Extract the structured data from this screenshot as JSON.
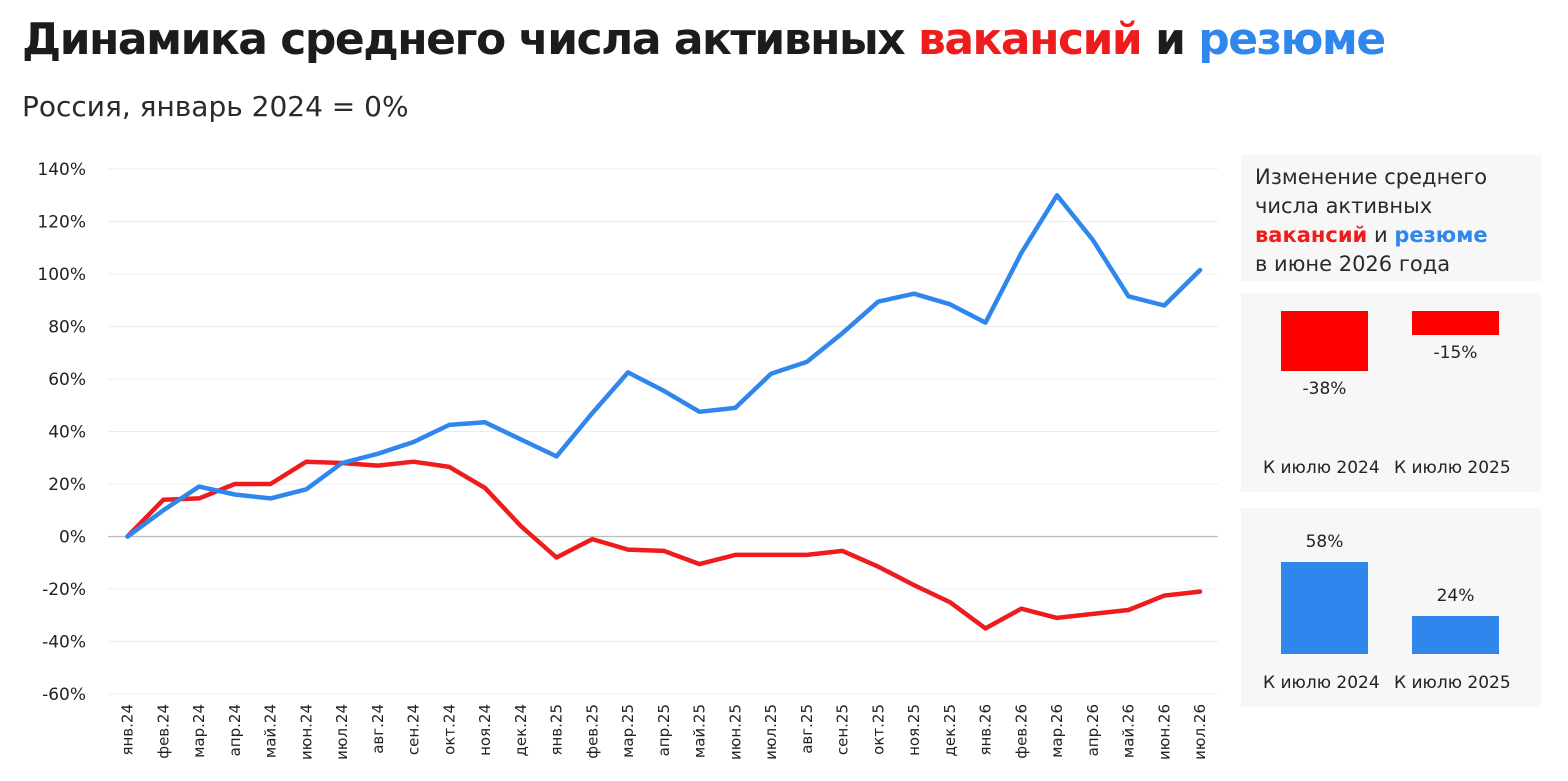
{
  "header": {
    "title_prefix": "Динамика среднего числа активных",
    "title_vacancies": "вакансий",
    "title_and": "и",
    "title_resumes": "резюме",
    "subtitle": "Россия, январь 2024 = 0%"
  },
  "colors": {
    "vacancies": "#ee1c1c",
    "resumes": "#2f86ec"
  },
  "chart_data": [
    {
      "type": "line",
      "title": "Динамика среднего числа активных вакансий и резюме",
      "subtitle": "Россия, январь 2024 = 0%",
      "xlabel": "",
      "ylabel": "",
      "ylim": [
        -60,
        140
      ],
      "yticks": [
        140,
        120,
        100,
        80,
        60,
        40,
        20,
        0,
        -20,
        -40,
        -60
      ],
      "ytick_labels": [
        "140%",
        "120%",
        "100%",
        "80%",
        "60%",
        "40%",
        "20%",
        "0%",
        "-20%",
        "-40%",
        "-60%"
      ],
      "grid": true,
      "categories": [
        "янв.24",
        "фев.24",
        "мар.24",
        "апр.24",
        "май.24",
        "июн.24",
        "июл.24",
        "авг.24",
        "сен.24",
        "окт.24",
        "ноя.24",
        "дек.24",
        "янв.25",
        "фев.25",
        "мар.25",
        "апр.25",
        "май.25",
        "июн.25",
        "июл.25",
        "авг.25",
        "сен.25",
        "окт.25",
        "ноя.25",
        "дек.25",
        "янв.26",
        "фев.26",
        "мар.26",
        "апр.26",
        "май.26",
        "июн.26",
        "июл.26"
      ],
      "series": [
        {
          "color": "#ee1c1c",
          "values": [
            0,
            14,
            14.5,
            20,
            20,
            28.5,
            28,
            27,
            28.5,
            26.5,
            18.5,
            4,
            -8,
            -1,
            -5,
            -5.5,
            -10.5,
            -7,
            -7,
            -7,
            -5.5,
            -11.5,
            -18.5,
            -25,
            -35,
            -27.5,
            -31,
            -29.5,
            -28,
            -22.5,
            -21
          ]
        },
        {
          "color": "#2f86ec",
          "values": [
            0,
            10,
            19,
            16,
            14.5,
            18,
            28,
            31.5,
            36,
            42.5,
            43.5,
            37,
            30.5,
            47,
            62.5,
            55.5,
            47.5,
            49,
            62,
            66.5,
            77.5,
            89.5,
            92.5,
            88.5,
            81.5,
            108,
            130,
            113,
            91.5,
            88,
            101.5
          ]
        }
      ]
    },
    {
      "type": "bar",
      "title": "Изменение среднего числа активных вакансий в июне 2026 года",
      "categories": [
        "К июлю 2024",
        "К июлю 2025"
      ],
      "values": [
        -38,
        -15
      ],
      "value_labels": [
        "-38%",
        "-15%"
      ],
      "color": "#ff0000"
    },
    {
      "type": "bar",
      "title": "Изменение среднего числа активных резюме в июне 2026 года",
      "categories": [
        "К июлю 2024",
        "К июлю 2025"
      ],
      "values": [
        58,
        24
      ],
      "value_labels": [
        "58%",
        "24%"
      ],
      "color": "#2f86ec"
    }
  ],
  "side_panel": {
    "line1": "Изменение среднего",
    "line2": "числа активных",
    "vacancies_word": "вакансий",
    "and_word": "и",
    "resumes_word": "резюме",
    "line4": "в июне 2026 года"
  }
}
